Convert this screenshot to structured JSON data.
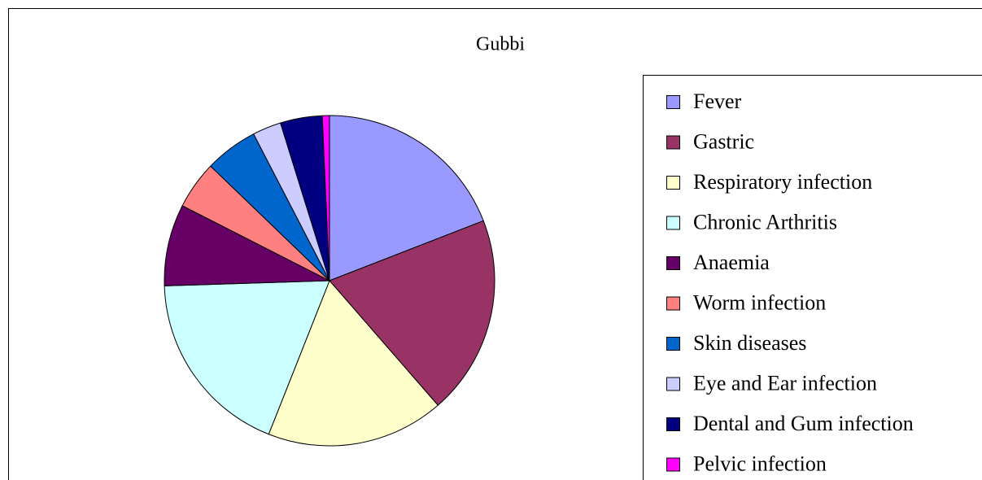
{
  "chart_data": {
    "type": "pie",
    "title": "Gubbi",
    "categories": [
      "Fever",
      "Gastric",
      "Respiratory infection",
      "Chronic Arthritis",
      "Anaemia",
      "Worm infection",
      "Skin diseases",
      "Eye and Ear infection",
      "Dental and Gum infection",
      "Pelvic infection"
    ],
    "values": [
      19.1,
      19.5,
      17.4,
      18.5,
      8,
      4.7,
      5.2,
      2.8,
      4.1,
      0.7
    ],
    "colors": [
      "#9999ff",
      "#993366",
      "#ffffcc",
      "#ccffff",
      "#660066",
      "#ff8080",
      "#0066cc",
      "#ccccff",
      "#000080",
      "#ff00ff"
    ],
    "legend": "right"
  }
}
